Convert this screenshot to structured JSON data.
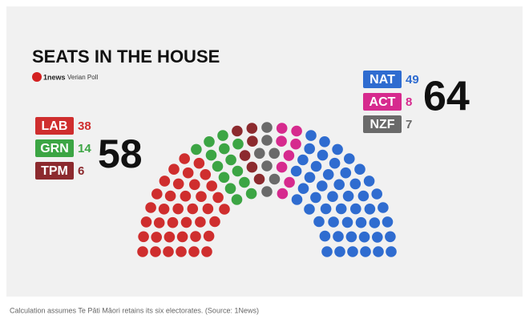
{
  "chart_data": {
    "type": "parliament",
    "title": "SEATS IN THE HOUSE",
    "logo": "1news",
    "subtitle": "Verian Poll",
    "blocs": [
      {
        "total": 58,
        "parties": [
          {
            "name": "LAB",
            "seats": 38,
            "color": "#cf2e2e"
          },
          {
            "name": "GRN",
            "seats": 14,
            "color": "#3ca544"
          },
          {
            "name": "TPM",
            "seats": 6,
            "color": "#8c2a2e"
          }
        ]
      },
      {
        "total": 64,
        "parties": [
          {
            "name": "NAT",
            "seats": 49,
            "color": "#2f6cd0"
          },
          {
            "name": "ACT",
            "seats": 8,
            "color": "#d62a8e"
          },
          {
            "name": "NZF",
            "seats": 7,
            "color": "#6a6a6a"
          }
        ]
      }
    ],
    "caption": "Calculation assumes Te Pāti Māori retains its six electorates. (Source: 1News)"
  }
}
